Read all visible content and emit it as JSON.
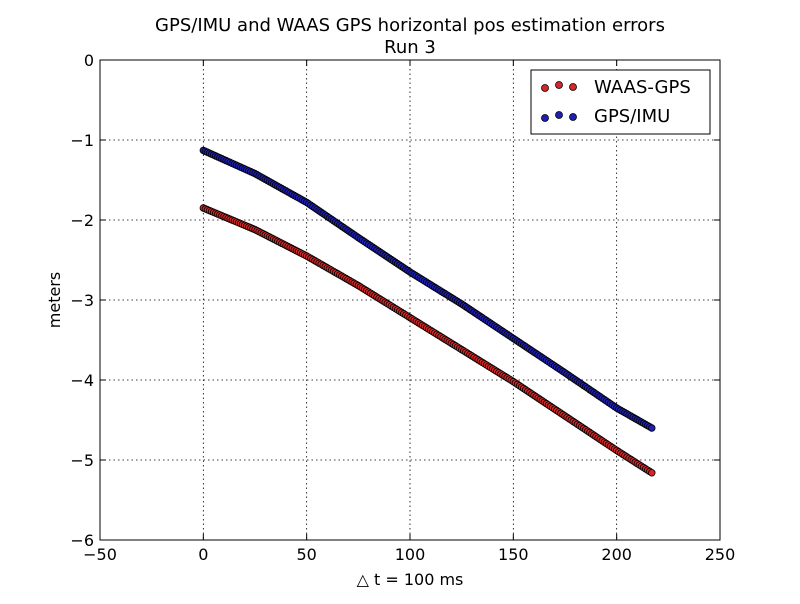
{
  "chart_data": {
    "type": "scatter",
    "title": "GPS/IMU and WAAS GPS horizontal pos estimation errors",
    "subtitle": "Run 3",
    "xlabel": "△ t = 100 ms",
    "ylabel": "meters",
    "xlim": [
      -50,
      250
    ],
    "ylim": [
      -6,
      0
    ],
    "xticks": [
      -50,
      0,
      50,
      100,
      150,
      200,
      250
    ],
    "xtick_labels": [
      "−50",
      "0",
      "50",
      "100",
      "150",
      "200",
      "250"
    ],
    "yticks": [
      0,
      -1,
      -2,
      -3,
      -4,
      -5,
      -6
    ],
    "ytick_labels": [
      "0",
      "−1",
      "−2",
      "−3",
      "−4",
      "−5",
      "−6"
    ],
    "grid": true,
    "legend_position": "top-right",
    "x_start": 0,
    "x_end": 217,
    "x_step": 1,
    "series": [
      {
        "name": "WAAS-GPS",
        "color": "#d62728",
        "anchors_x": [
          0,
          25,
          50,
          75,
          100,
          125,
          150,
          175,
          200,
          217
        ],
        "anchors_y": [
          -1.85,
          -2.12,
          -2.45,
          -2.82,
          -3.22,
          -3.62,
          -4.02,
          -4.45,
          -4.88,
          -5.16
        ]
      },
      {
        "name": "GPS/IMU",
        "color": "#1f1fb4",
        "anchors_x": [
          0,
          25,
          50,
          75,
          100,
          125,
          150,
          175,
          200,
          217
        ],
        "anchors_y": [
          -1.13,
          -1.42,
          -1.78,
          -2.22,
          -2.65,
          -3.05,
          -3.48,
          -3.91,
          -4.35,
          -4.6
        ]
      }
    ]
  }
}
